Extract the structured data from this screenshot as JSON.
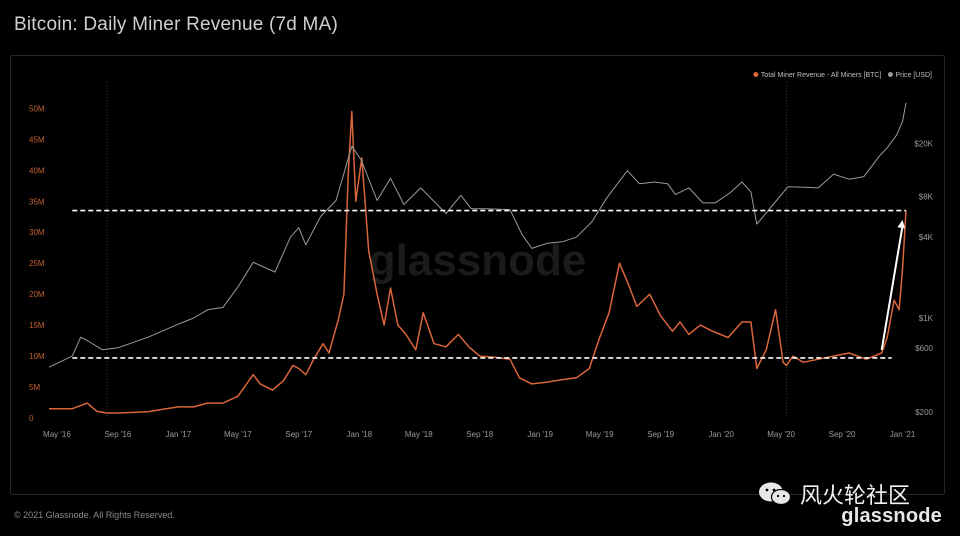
{
  "header": {
    "title": "Bitcoin: Daily Miner Revenue (7d MA)"
  },
  "footer": {
    "copyright": "© 2021 Glassnode. All Rights Reserved."
  },
  "brand": {
    "logo_text": "glassnode",
    "watermark_text": "glassnode",
    "wechat_account": "风火轮社区"
  },
  "colors": {
    "revenue": "#d9653b",
    "price": "#9a9a9a",
    "annotation": "#ffffff",
    "background": "#000000"
  },
  "chart_data": {
    "type": "line",
    "title": "Bitcoin: Daily Miner Revenue (7d MA)",
    "x_ticks": [
      "May '16",
      "Sep '16",
      "Jan '17",
      "May '17",
      "Sep '17",
      "Jan '18",
      "May '18",
      "Sep '18",
      "Jan '19",
      "May '19",
      "Sep '19",
      "Jan '20",
      "May '20",
      "Sep '20",
      "Jan '21"
    ],
    "y_left": {
      "ticks": [
        "0",
        "5M",
        "10M",
        "15M",
        "20M",
        "25M",
        "30M",
        "35M",
        "40M",
        "45M",
        "50M"
      ],
      "range": [
        0,
        52000000
      ]
    },
    "y_right": {
      "ticks": [
        "$200",
        "$600",
        "$1K",
        "$4K",
        "$8K",
        "$20K"
      ],
      "scale": "log",
      "range": [
        180,
        45000
      ]
    },
    "series": [
      {
        "name": "Total Miner Revenue - All Miners [BTC]",
        "axis": "left",
        "x": [
          "2016-04-15",
          "2016-06-01",
          "2016-07-01",
          "2016-07-20",
          "2016-08-10",
          "2016-09-01",
          "2016-10-01",
          "2016-11-01",
          "2016-12-01",
          "2017-01-01",
          "2017-02-01",
          "2017-03-01",
          "2017-04-01",
          "2017-05-01",
          "2017-06-01",
          "2017-06-15",
          "2017-07-10",
          "2017-08-01",
          "2017-08-20",
          "2017-09-01",
          "2017-09-15",
          "2017-10-01",
          "2017-10-20",
          "2017-11-01",
          "2017-11-20",
          "2017-12-01",
          "2017-12-10",
          "2017-12-17",
          "2017-12-25",
          "2018-01-06",
          "2018-01-20",
          "2018-02-06",
          "2018-02-20",
          "2018-03-05",
          "2018-03-20",
          "2018-04-05",
          "2018-04-25",
          "2018-05-10",
          "2018-06-01",
          "2018-06-25",
          "2018-07-20",
          "2018-08-10",
          "2018-09-01",
          "2018-10-01",
          "2018-11-01",
          "2018-11-20",
          "2018-12-15",
          "2019-01-15",
          "2019-02-15",
          "2019-03-15",
          "2019-04-10",
          "2019-05-01",
          "2019-05-20",
          "2019-06-10",
          "2019-06-26",
          "2019-07-15",
          "2019-08-10",
          "2019-09-01",
          "2019-09-25",
          "2019-10-10",
          "2019-10-28",
          "2019-11-20",
          "2019-12-15",
          "2020-01-15",
          "2020-02-12",
          "2020-03-01",
          "2020-03-13",
          "2020-04-01",
          "2020-04-20",
          "2020-05-05",
          "2020-05-12",
          "2020-05-25",
          "2020-06-15",
          "2020-07-15",
          "2020-08-15",
          "2020-09-15",
          "2020-10-20",
          "2020-11-20",
          "2020-12-01",
          "2020-12-15",
          "2020-12-25",
          "2021-01-01",
          "2021-01-08"
        ],
        "y": [
          1500000,
          1500000,
          2400000,
          1100000,
          800000,
          800000,
          900000,
          1000000,
          1400000,
          1800000,
          1800000,
          2400000,
          2400000,
          3500000,
          7000000,
          5500000,
          4500000,
          6000000,
          8500000,
          8000000,
          7000000,
          9500000,
          12000000,
          10500000,
          16000000,
          20000000,
          40000000,
          49500000,
          35000000,
          42000000,
          27000000,
          20000000,
          15000000,
          21000000,
          15000000,
          13500000,
          11000000,
          17000000,
          12000000,
          11500000,
          13500000,
          11500000,
          10000000,
          9800000,
          9500000,
          6500000,
          5500000,
          5800000,
          6200000,
          6500000,
          8000000,
          13000000,
          17000000,
          25000000,
          22000000,
          18000000,
          20000000,
          16500000,
          14000000,
          15500000,
          13500000,
          15000000,
          14000000,
          13000000,
          15500000,
          15500000,
          8000000,
          11000000,
          17500000,
          9000000,
          8500000,
          10000000,
          9000000,
          9500000,
          10000000,
          10500000,
          9500000,
          10500000,
          13000000,
          19000000,
          17500000,
          24000000,
          33500000
        ]
      },
      {
        "name": "Price [USD]",
        "axis": "right",
        "x": [
          "2016-04-15",
          "2016-06-01",
          "2016-06-18",
          "2016-07-01",
          "2016-08-01",
          "2016-09-01",
          "2016-11-01",
          "2017-01-01",
          "2017-02-01",
          "2017-03-01",
          "2017-04-01",
          "2017-05-01",
          "2017-06-01",
          "2017-07-15",
          "2017-08-15",
          "2017-09-01",
          "2017-09-15",
          "2017-10-15",
          "2017-11-15",
          "2017-12-17",
          "2018-01-05",
          "2018-02-06",
          "2018-03-05",
          "2018-04-01",
          "2018-05-05",
          "2018-06-25",
          "2018-07-25",
          "2018-08-15",
          "2018-09-15",
          "2018-11-01",
          "2018-11-25",
          "2018-12-15",
          "2019-01-15",
          "2019-02-15",
          "2019-03-15",
          "2019-04-15",
          "2019-05-15",
          "2019-06-26",
          "2019-07-20",
          "2019-08-20",
          "2019-09-15",
          "2019-10-01",
          "2019-10-28",
          "2019-11-25",
          "2019-12-20",
          "2020-01-20",
          "2020-02-12",
          "2020-03-01",
          "2020-03-13",
          "2020-04-15",
          "2020-05-15",
          "2020-06-15",
          "2020-07-15",
          "2020-08-15",
          "2020-09-15",
          "2020-10-15",
          "2020-11-15",
          "2020-12-01",
          "2020-12-20",
          "2021-01-01",
          "2021-01-08"
        ],
        "y": [
          430,
          520,
          720,
          680,
          580,
          600,
          720,
          900,
          1000,
          1150,
          1200,
          1700,
          2600,
          2200,
          4000,
          4700,
          3500,
          5700,
          7500,
          19000,
          15000,
          7500,
          11000,
          7000,
          9300,
          6000,
          8200,
          6500,
          6500,
          6400,
          4200,
          3300,
          3600,
          3700,
          4000,
          5200,
          7800,
          12500,
          10000,
          10300,
          10000,
          8300,
          9300,
          7200,
          7200,
          8600,
          10300,
          8700,
          5000,
          7000,
          9500,
          9400,
          9300,
          11800,
          10800,
          11300,
          16000,
          18500,
          23000,
          29000,
          40000
        ]
      }
    ],
    "annotations": [
      {
        "type": "hline",
        "axis": "left",
        "value": 33500000,
        "style": "dashed",
        "from": "2016-06-01",
        "to": "2021-01-08"
      },
      {
        "type": "hline",
        "axis": "left",
        "value": 9700000,
        "style": "dashed",
        "from": "2016-06-01",
        "to": "2020-12-10"
      },
      {
        "type": "vline",
        "x": "2016-08-10",
        "style": "dotted"
      },
      {
        "type": "vline",
        "x": "2020-05-12",
        "style": "dotted"
      },
      {
        "type": "arrow",
        "from": {
          "x": "2020-11-20",
          "y": 11000000
        },
        "to": {
          "x": "2021-01-01",
          "y": 32000000
        }
      }
    ],
    "grid": false,
    "legend": "top-right"
  }
}
